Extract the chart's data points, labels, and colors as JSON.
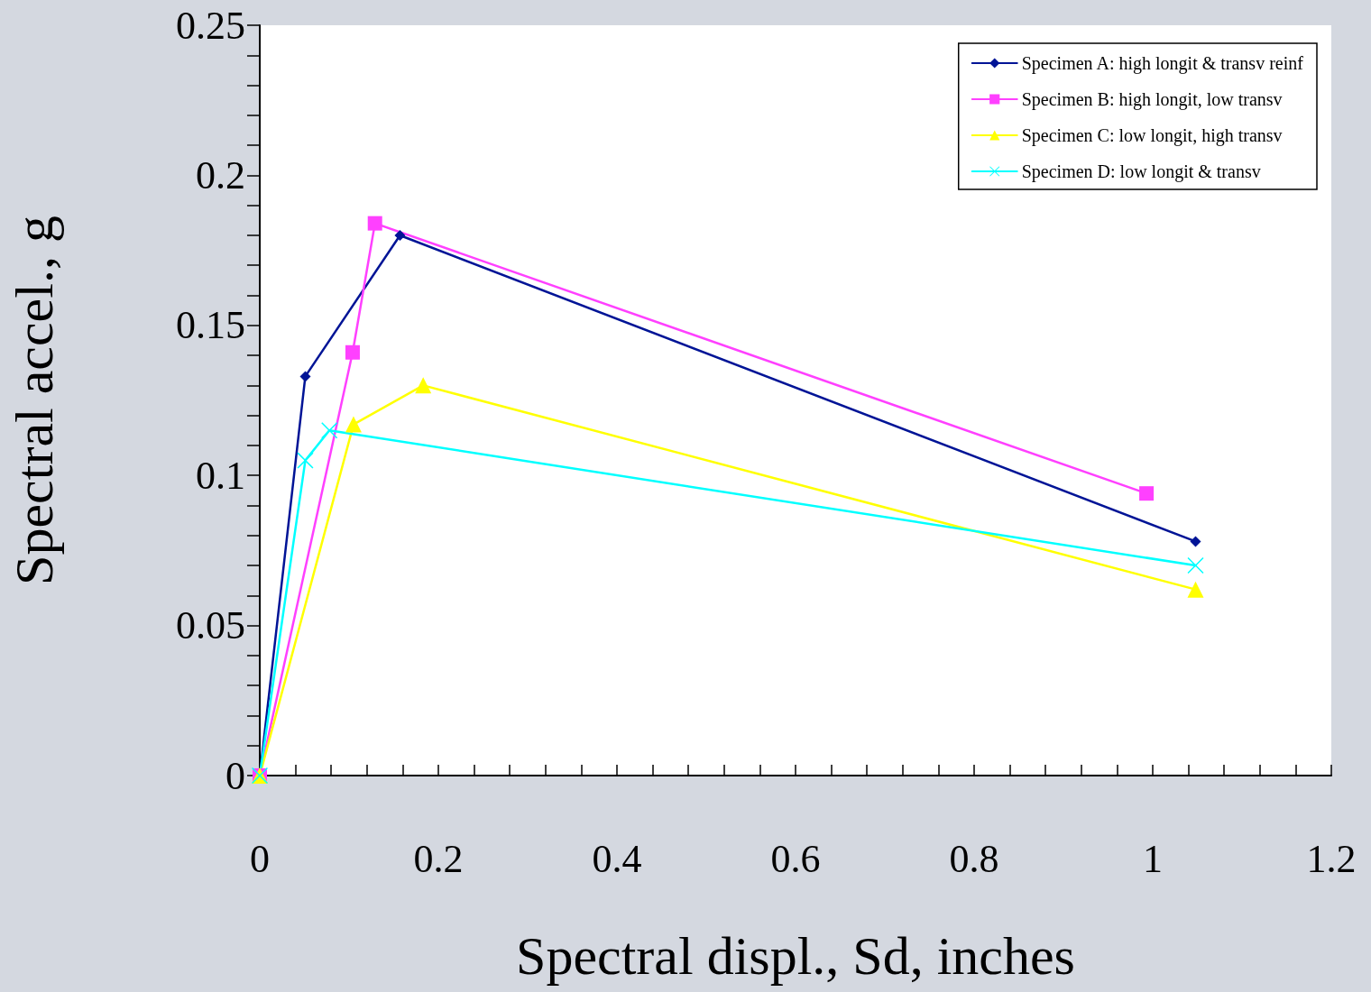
{
  "chart_data": {
    "type": "line",
    "xlabel": "Spectral displ., Sd, inches",
    "ylabel": "Spectral accel., g",
    "xlim": [
      0,
      1.2
    ],
    "ylim": [
      0,
      0.25
    ],
    "xticks": [
      0,
      {
        "value": 0.04,
        "label": null
      },
      {
        "value": 0.08,
        "label": null
      },
      {
        "value": 0.12,
        "label": null
      },
      {
        "value": 0.16,
        "label": null
      },
      0.2,
      {
        "value": 0.24,
        "label": null
      },
      {
        "value": 0.28,
        "label": null
      },
      {
        "value": 0.32,
        "label": null
      },
      {
        "value": 0.36,
        "label": null
      },
      0.4,
      {
        "value": 0.44,
        "label": null
      },
      {
        "value": 0.48,
        "label": null
      },
      {
        "value": 0.52,
        "label": null
      },
      {
        "value": 0.56,
        "label": null
      },
      0.6,
      {
        "value": 0.64,
        "label": null
      },
      {
        "value": 0.68,
        "label": null
      },
      {
        "value": 0.72,
        "label": null
      },
      {
        "value": 0.76,
        "label": null
      },
      0.8,
      {
        "value": 0.84,
        "label": null
      },
      {
        "value": 0.88,
        "label": null
      },
      {
        "value": 0.92,
        "label": null
      },
      {
        "value": 0.96,
        "label": null
      },
      1,
      {
        "value": 1.04,
        "label": null
      },
      {
        "value": 1.08,
        "label": null
      },
      {
        "value": 1.12,
        "label": null
      },
      {
        "value": 1.16,
        "label": null
      },
      1.2
    ],
    "yticks": [
      0,
      {
        "value": 0.01,
        "label": null
      },
      {
        "value": 0.02,
        "label": null
      },
      {
        "value": 0.03,
        "label": null
      },
      {
        "value": 0.04,
        "label": null
      },
      0.05,
      {
        "value": 0.06,
        "label": null
      },
      {
        "value": 0.07,
        "label": null
      },
      {
        "value": 0.08,
        "label": null
      },
      {
        "value": 0.09,
        "label": null
      },
      0.1,
      {
        "value": 0.11,
        "label": null
      },
      {
        "value": 0.12,
        "label": null
      },
      {
        "value": 0.13,
        "label": null
      },
      {
        "value": 0.14,
        "label": null
      },
      0.15,
      {
        "value": 0.16,
        "label": null
      },
      {
        "value": 0.17,
        "label": null
      },
      {
        "value": 0.18,
        "label": null
      },
      {
        "value": 0.19,
        "label": null
      },
      0.2,
      {
        "value": 0.21,
        "label": null
      },
      {
        "value": 0.22,
        "label": null
      },
      {
        "value": 0.23,
        "label": null
      },
      {
        "value": 0.24,
        "label": null
      },
      0.25
    ],
    "grid": false,
    "legend": "top right",
    "line_style": "solid",
    "series": [
      {
        "name": "Specimen A: high longit & transv reinf",
        "color": "#001496",
        "marker": "diamond",
        "x": [
          0,
          0.051,
          0.157,
          1.048
        ],
        "values": [
          0,
          0.133,
          0.18,
          0.078
        ]
      },
      {
        "name": "Specimen B: high longit, low transv",
        "color": "#ff40ff",
        "marker": "square",
        "x": [
          0,
          0.104,
          0.129,
          0.993
        ],
        "values": [
          0,
          0.141,
          0.184,
          0.094
        ]
      },
      {
        "name": "Specimen C: low longit, high transv",
        "color": "#ffff00",
        "marker": "triangle",
        "x": [
          0,
          0.105,
          0.183,
          1.048
        ],
        "values": [
          0,
          0.117,
          0.13,
          0.062
        ]
      },
      {
        "name": "Specimen D: low longit & transv",
        "color": "#00ffff",
        "marker": "cross",
        "x": [
          0,
          0.051,
          0.078,
          1.048
        ],
        "values": [
          0,
          0.105,
          0.115,
          0.07
        ]
      }
    ]
  }
}
